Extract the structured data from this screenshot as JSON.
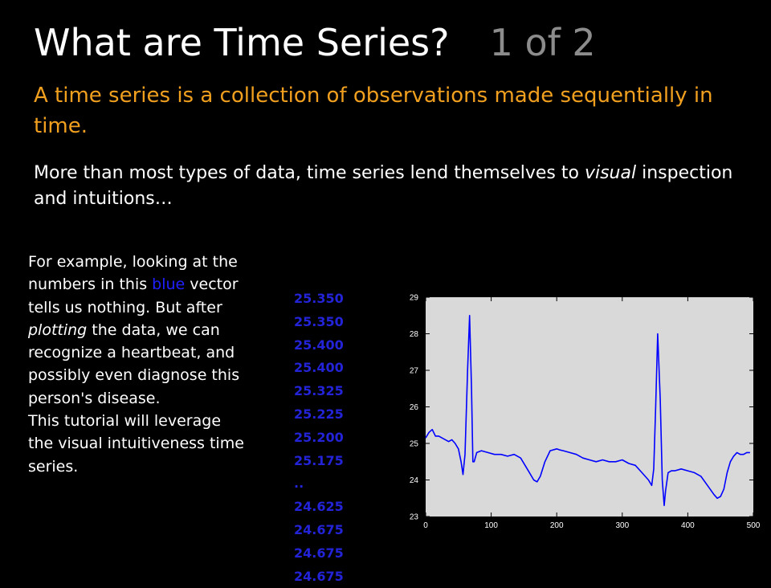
{
  "slide": {
    "title": "What are Time Series?",
    "title_part": "1 of 2",
    "subtitle": "A time series is a collection of observations made sequentially in time.",
    "lead_before": "More than most types of data, time series lend themselves to ",
    "lead_italic": "visual",
    "lead_after": " inspection and intuitions…",
    "side_text": {
      "p1": "For example, looking at the numbers in this ",
      "blue_word": "blue",
      "p2": " vector tells us nothing. But after ",
      "italic_word": "plotting",
      "p3": " the data, we can recognize a heartbeat, and possibly even diagnose this person's disease.",
      "p4": "This tutorial will leverage the visual intuitiveness time series."
    },
    "vector_values": [
      "25.350",
      "25.350",
      "25.400",
      "25.400",
      "25.325",
      "25.225",
      "25.200",
      "25.175",
      "..",
      "24.625",
      "24.675",
      "24.675",
      "24.675"
    ]
  },
  "colors": {
    "background": "#000000",
    "title": "#ffffff",
    "title_part": "#8c8c8c",
    "subtitle": "#f0a01e",
    "vector_text": "#2323d8",
    "series_line": "#0000ff",
    "plot_area": "#d9d9d9"
  },
  "chart_data": {
    "type": "line",
    "title": "",
    "xlabel": "",
    "ylabel": "",
    "xlim": [
      0,
      500
    ],
    "ylim": [
      23,
      29
    ],
    "x_ticks": [
      0,
      100,
      200,
      300,
      400,
      500
    ],
    "y_ticks": [
      23,
      24,
      25,
      26,
      27,
      28,
      29
    ],
    "grid": false,
    "series": [
      {
        "x": [
          0,
          5,
          10,
          15,
          20,
          25,
          30,
          35,
          40,
          45,
          50,
          54,
          57,
          60,
          64,
          67,
          70,
          72,
          74,
          78,
          85,
          95,
          105,
          115,
          125,
          135,
          145,
          155,
          165,
          170,
          175,
          182,
          190,
          200,
          205,
          210,
          220,
          230,
          240,
          250,
          260,
          270,
          280,
          290,
          300,
          310,
          320,
          330,
          340,
          345,
          348,
          351,
          354,
          358,
          361,
          364,
          366,
          370,
          375,
          380,
          390,
          400,
          410,
          420,
          430,
          440,
          445,
          450,
          455,
          460,
          465,
          470,
          475,
          480,
          485,
          490,
          495
        ],
        "y": [
          25.15,
          25.3,
          25.38,
          25.2,
          25.2,
          25.15,
          25.1,
          25.05,
          25.1,
          25.0,
          24.85,
          24.5,
          24.15,
          24.7,
          27.0,
          28.5,
          26.5,
          24.5,
          24.5,
          24.75,
          24.8,
          24.75,
          24.7,
          24.7,
          24.65,
          24.7,
          24.6,
          24.3,
          24.0,
          23.95,
          24.1,
          24.5,
          24.8,
          24.85,
          24.82,
          24.8,
          24.75,
          24.7,
          24.6,
          24.55,
          24.5,
          24.55,
          24.5,
          24.5,
          24.55,
          24.45,
          24.4,
          24.2,
          24.0,
          23.85,
          24.3,
          26.0,
          28.0,
          26.2,
          24.0,
          23.3,
          23.7,
          24.2,
          24.25,
          24.25,
          24.3,
          24.25,
          24.2,
          24.1,
          23.85,
          23.6,
          23.5,
          23.55,
          23.75,
          24.2,
          24.5,
          24.65,
          24.75,
          24.7,
          24.7,
          24.75,
          24.75
        ]
      }
    ]
  }
}
